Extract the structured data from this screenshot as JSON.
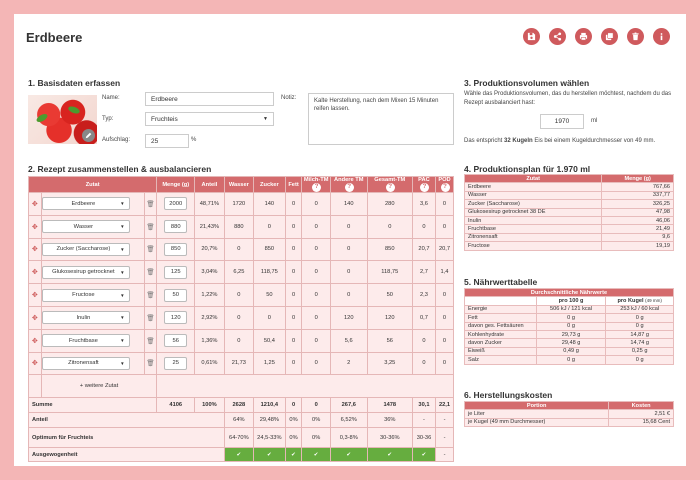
{
  "title": "Erdbeere",
  "sections": {
    "basis": "1. Basisdaten erfassen",
    "rezept": "2. Rezept zusammenstellen & ausbalancieren",
    "volumen": "3. Produktionsvolumen wählen",
    "plan": "4. Produktionsplan für 1.970 ml",
    "naehr": "5. Nährwerttabelle",
    "kosten": "6. Herstellungskosten"
  },
  "basis": {
    "name_label": "Name:",
    "name_value": "Erdbeere",
    "typ_label": "Typ:",
    "typ_value": "Fruchteis",
    "auf_label": "Aufschlag:",
    "auf_value": "25",
    "auf_unit": "%",
    "notiz_label": "Notiz:",
    "notiz_value": "Kalte Herstellung, nach dem Mixen 15 Minuten reifen lassen."
  },
  "volumen": {
    "text": "Wähle das Produktionsvolumen, das du herstellen möchtest, nachdem du das Rezept ausbalanciert hast:",
    "value": "1970",
    "unit": "ml",
    "note_pre": "Das entspricht ",
    "note_bold": "32 Kugeln",
    "note_post": " Eis bei einem Kugeldurchmesser von 49 mm."
  },
  "recipe": {
    "headers": [
      "Zutat",
      "Menge (g)",
      "Anteil",
      "Wasser",
      "Zucker",
      "Fett",
      "Milch-TM",
      "Andere TM",
      "Gesamt-TM",
      "PAC",
      "POD"
    ],
    "rows": [
      {
        "name": "Erdbeere",
        "menge": "2000",
        "anteil": "48,71%",
        "wasser": "1720",
        "zucker": "140",
        "fett": "0",
        "milch": "0",
        "andere": "140",
        "gesamt": "280",
        "pac": "3,6",
        "pod": "0"
      },
      {
        "name": "Wasser",
        "menge": "880",
        "anteil": "21,43%",
        "wasser": "880",
        "zucker": "0",
        "fett": "0",
        "milch": "0",
        "andere": "0",
        "gesamt": "0",
        "pac": "0",
        "pod": "0"
      },
      {
        "name": "Zucker (Saccharose)",
        "menge": "850",
        "anteil": "20,7%",
        "wasser": "0",
        "zucker": "850",
        "fett": "0",
        "milch": "0",
        "andere": "0",
        "gesamt": "850",
        "pac": "20,7",
        "pod": "20,7"
      },
      {
        "name": "Glukosesirup getrocknet",
        "menge": "125",
        "anteil": "3,04%",
        "wasser": "6,25",
        "zucker": "118,75",
        "fett": "0",
        "milch": "0",
        "andere": "0",
        "gesamt": "118,75",
        "pac": "2,7",
        "pod": "1,4"
      },
      {
        "name": "Fructose",
        "menge": "50",
        "anteil": "1,22%",
        "wasser": "0",
        "zucker": "50",
        "fett": "0",
        "milch": "0",
        "andere": "0",
        "gesamt": "50",
        "pac": "2,3",
        "pod": "0"
      },
      {
        "name": "Inulin",
        "menge": "120",
        "anteil": "2,92%",
        "wasser": "0",
        "zucker": "0",
        "fett": "0",
        "milch": "0",
        "andere": "120",
        "gesamt": "120",
        "pac": "0,7",
        "pod": "0"
      },
      {
        "name": "Fruchtbase",
        "menge": "56",
        "anteil": "1,36%",
        "wasser": "0",
        "zucker": "50,4",
        "fett": "0",
        "milch": "0",
        "andere": "5,6",
        "gesamt": "56",
        "pac": "0",
        "pod": "0"
      },
      {
        "name": "Zitronensaft",
        "menge": "25",
        "anteil": "0,61%",
        "wasser": "21,73",
        "zucker": "1,25",
        "fett": "0",
        "milch": "0",
        "andere": "2",
        "gesamt": "3,25",
        "pac": "0",
        "pod": "0"
      }
    ],
    "add_label": "+ weitere Zutat",
    "sum": {
      "label": "Summe",
      "menge": "4106",
      "anteil": "100%",
      "wasser": "2628",
      "zucker": "1210,4",
      "fett": "0",
      "milch": "0",
      "andere": "267,6",
      "gesamt": "1478",
      "pac": "30,1",
      "pod": "22,1"
    },
    "anteil": {
      "label": "Anteil",
      "wasser": "64%",
      "zucker": "29,48%",
      "fett": "0%",
      "milch": "0%",
      "andere": "6,52%",
      "gesamt": "36%",
      "pac": "-",
      "pod": "-"
    },
    "optimum": {
      "label": "Optimum für Fruchteis",
      "wasser": "64-70%",
      "zucker": "24,5-33%",
      "fett": "0%",
      "milch": "0%",
      "andere": "0,3-8%",
      "gesamt": "30-36%",
      "pac": "30-36",
      "pod": "-"
    },
    "balanced": {
      "label": "Ausgewogenheit",
      "pod": "-"
    }
  },
  "plan": {
    "headers": [
      "Zutat",
      "Menge (g)"
    ],
    "rows": [
      [
        "Erdbeere",
        "767,66"
      ],
      [
        "Wasser",
        "337,77"
      ],
      [
        "Zucker (Saccharose)",
        "326,25"
      ],
      [
        "Glukosesirup getrocknet 38 DE",
        "47,98"
      ],
      [
        "Inulin",
        "46,06"
      ],
      [
        "Fruchtbase",
        "21,49"
      ],
      [
        "Zitronensaft",
        "9,6"
      ],
      [
        "Fructose",
        "19,19"
      ]
    ]
  },
  "naehr": {
    "header": "Durchschnittliche Nährwerte",
    "col1": "pro 100 g",
    "col2": "pro Kugel",
    "col2_small": "(49 mm)",
    "rows": [
      [
        "Energie",
        "506 kJ / 121 kcal",
        "253 kJ / 60 kcal"
      ],
      [
        "Fett",
        "0 g",
        "0 g"
      ],
      [
        "davon ges. Fettsäuren",
        "0 g",
        "0 g"
      ],
      [
        "Kohlenhydrate",
        "29,73 g",
        "14,87 g"
      ],
      [
        "davon Zucker",
        "29,48 g",
        "14,74 g"
      ],
      [
        "Eiweiß",
        "0,49 g",
        "0,25 g"
      ],
      [
        "Salz",
        "0 g",
        "0 g"
      ]
    ]
  },
  "kosten": {
    "headers": [
      "Portion",
      "Kosten"
    ],
    "rows": [
      [
        "je Liter",
        "2,51 €"
      ],
      [
        "je Kugel (49 mm Durchmesser)",
        "15,68 Cent"
      ]
    ]
  },
  "icons": [
    "save-icon",
    "share-icon",
    "print-icon",
    "copy-icon",
    "trash-icon",
    "info-icon"
  ],
  "colors": {
    "accent": "#d46b6d",
    "background": "#f4b6b6",
    "ok": "#66ad3f",
    "row": "#fdebeb"
  }
}
